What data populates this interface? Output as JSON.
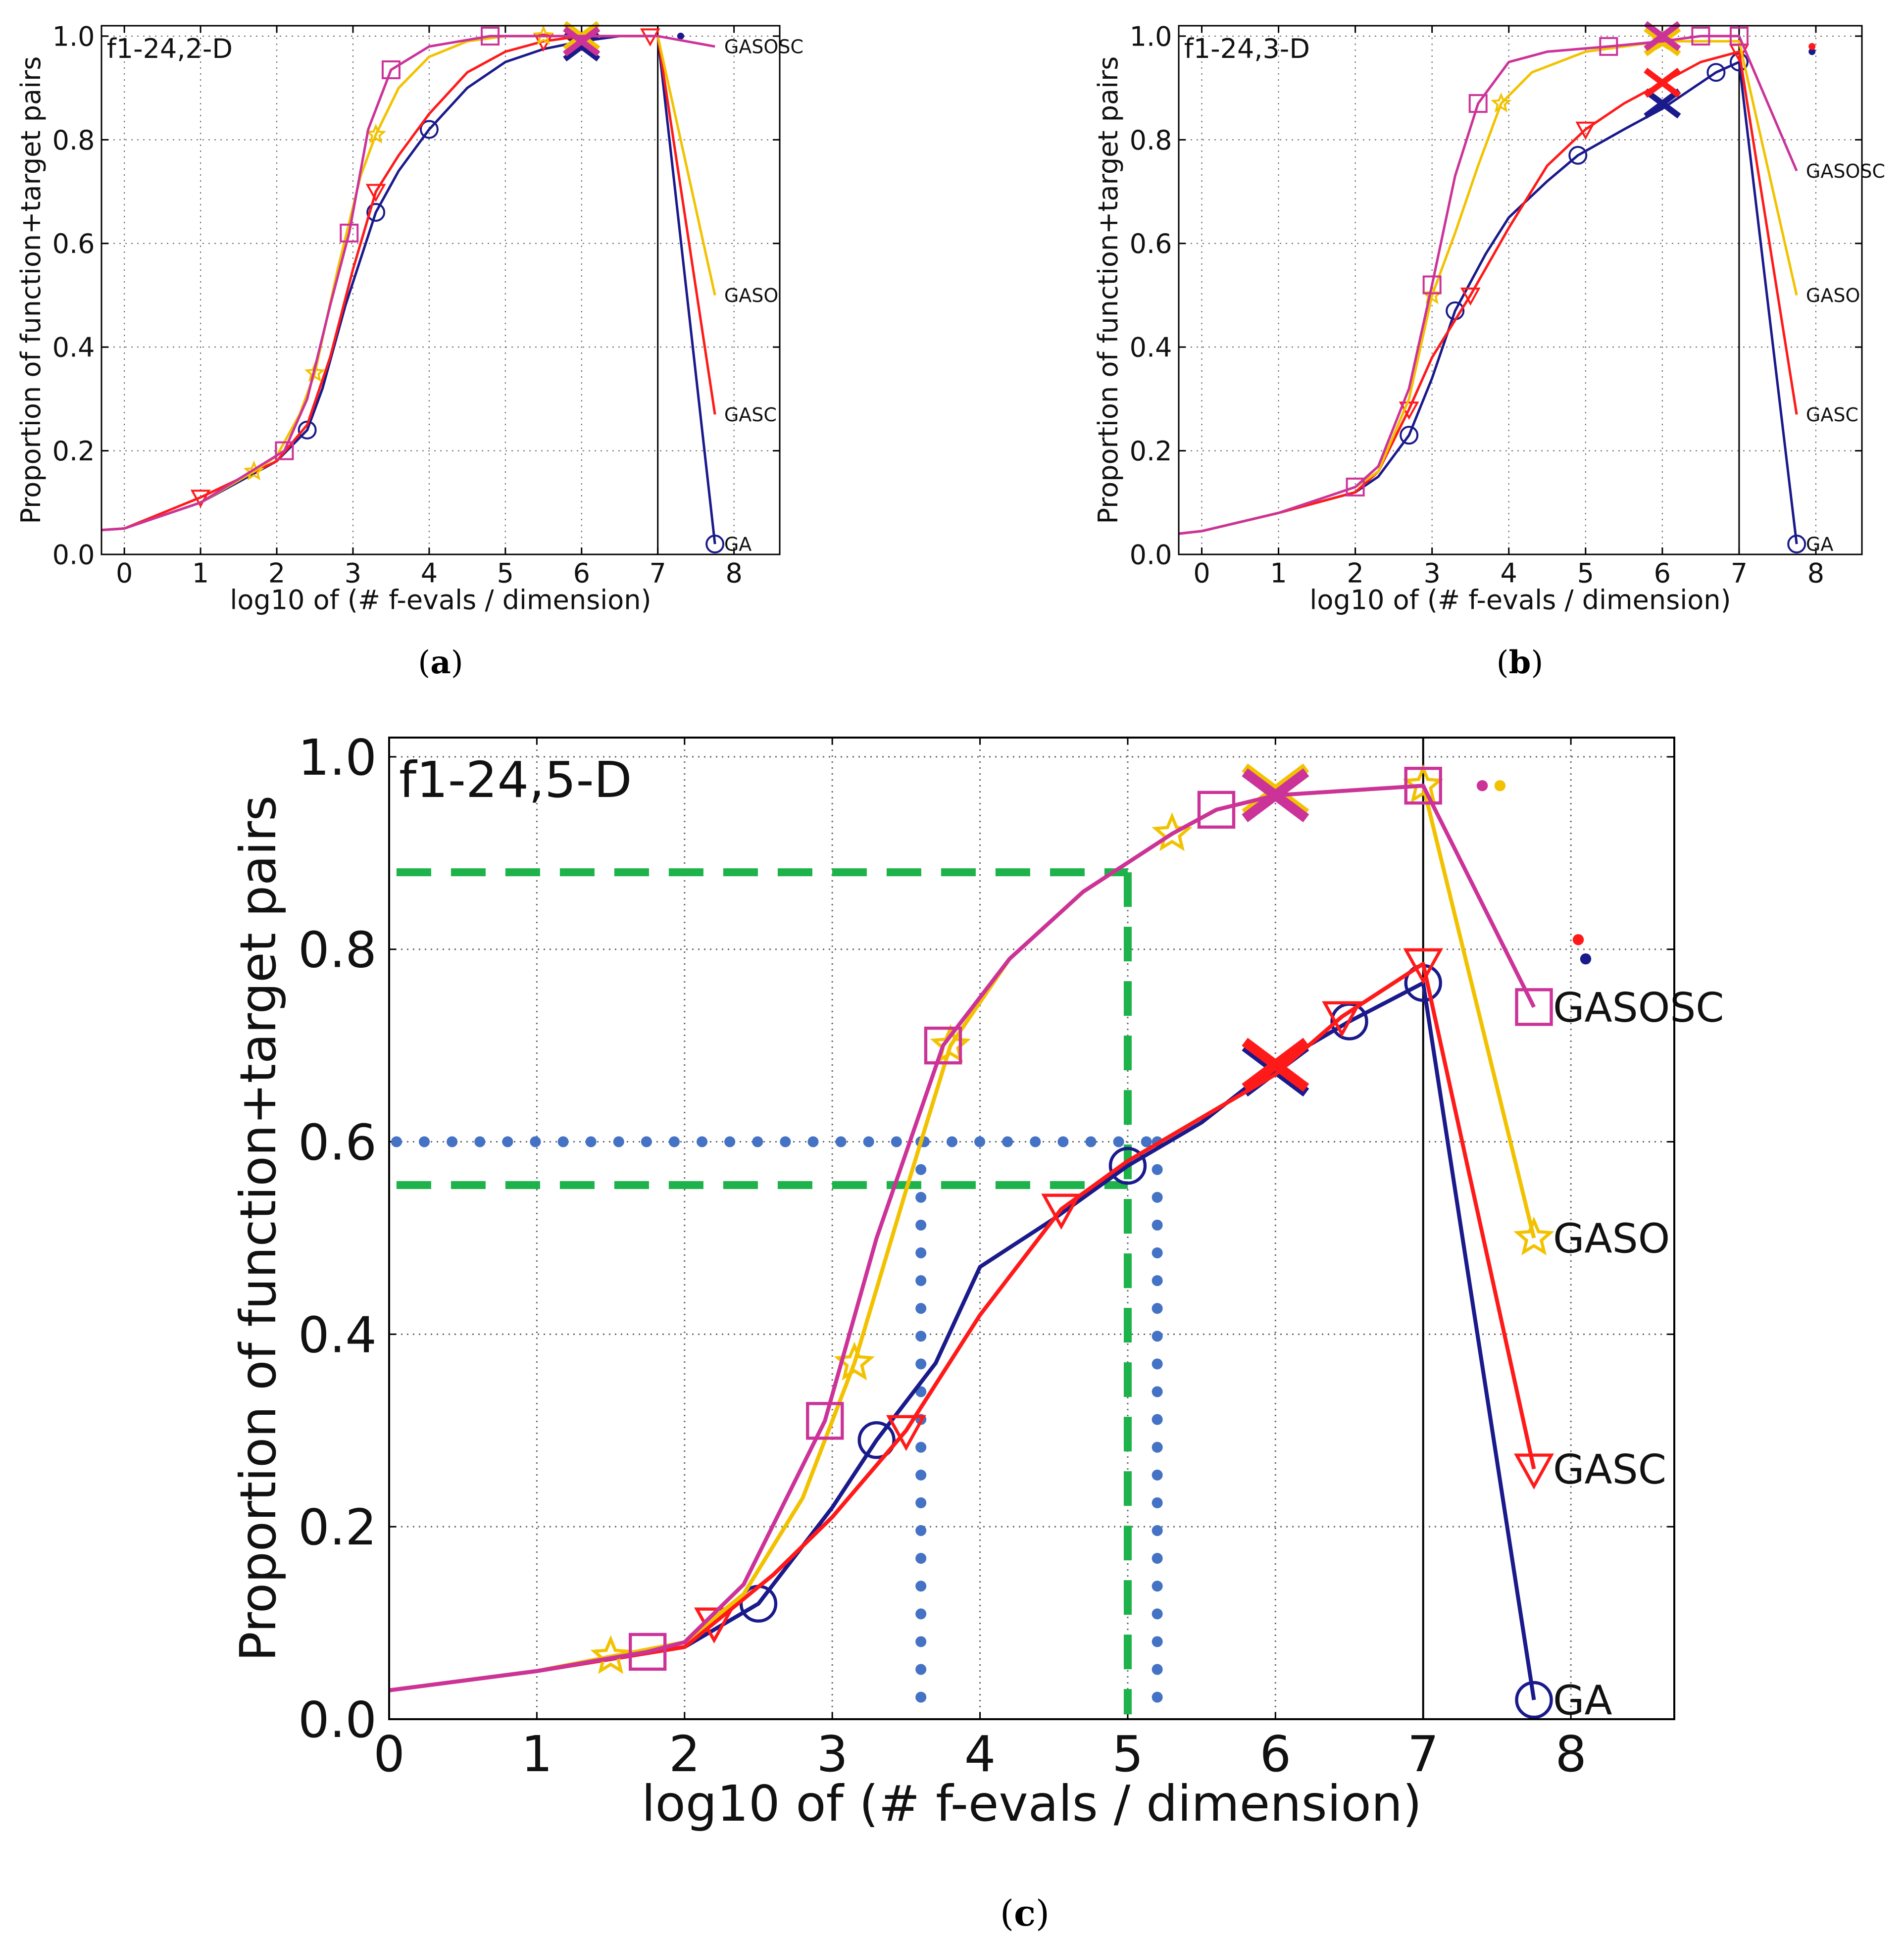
{
  "colors": {
    "GA": "#1a1a8c",
    "GASC": "#ff1a1a",
    "GASO": "#f2c200",
    "GASOSC": "#cc3399",
    "guide_green": "#1db34a",
    "guide_blue": "#4472c4",
    "grid": "#666666"
  },
  "chart_data": [
    {
      "id": "a",
      "type": "line",
      "caption_letter": "a",
      "title": "f1-24,2-D",
      "xlabel": "log10 of (# f-evals / dimension)",
      "ylabel": "Proportion of function+target pairs",
      "xlim": [
        -0.3,
        8.6
      ],
      "ylim": [
        0,
        1.02
      ],
      "xticks": [
        "0",
        "1",
        "2",
        "3",
        "4",
        "5",
        "6",
        "7",
        "8"
      ],
      "yticks": [
        "0.0",
        "0.2",
        "0.4",
        "0.6",
        "0.8",
        "1.0"
      ],
      "vline_x": 7,
      "series": [
        {
          "name": "GA",
          "label": "GA",
          "marker": "circle",
          "x": [
            -0.3,
            0,
            1,
            2,
            2.4,
            2.6,
            2.9,
            3.3,
            3.6,
            4,
            4.5,
            5,
            5.5,
            6,
            6.5,
            7,
            7.75
          ],
          "y": [
            0.047,
            0.05,
            0.1,
            0.18,
            0.24,
            0.32,
            0.48,
            0.66,
            0.74,
            0.82,
            0.9,
            0.95,
            0.975,
            0.99,
            1,
            1,
            0.02
          ],
          "marker_idx": [
            4,
            7,
            9,
            16
          ],
          "end_x": 7.75,
          "end_y": 0.02,
          "cross": [
            6,
            0.98
          ],
          "dot": [
            7.3,
            1.0
          ]
        },
        {
          "name": "GASC",
          "label": "GASC",
          "marker": "tri",
          "x": [
            -0.3,
            0,
            1,
            2,
            2.4,
            2.7,
            3,
            3.3,
            3.6,
            4,
            4.5,
            5,
            5.5,
            6,
            6.5,
            6.9,
            7,
            7.75
          ],
          "y": [
            0.047,
            0.05,
            0.11,
            0.18,
            0.25,
            0.38,
            0.55,
            0.7,
            0.77,
            0.85,
            0.93,
            0.97,
            0.99,
            1,
            1,
            1,
            1,
            0.27
          ],
          "marker_idx": [
            2,
            7,
            12,
            15
          ],
          "end_x": 7.75,
          "end_y": 0.27,
          "cross": [
            6,
            0.99
          ],
          "dot": []
        },
        {
          "name": "GASO",
          "label": "GASO",
          "marker": "star",
          "x": [
            -0.3,
            0,
            1,
            1.7,
            2,
            2.3,
            2.5,
            2.8,
            3.1,
            3.3,
            3.6,
            4,
            4.5,
            5,
            5.5,
            6,
            7,
            7.75
          ],
          "y": [
            0.047,
            0.05,
            0.1,
            0.16,
            0.19,
            0.27,
            0.35,
            0.55,
            0.73,
            0.81,
            0.9,
            0.96,
            0.99,
            1,
            1,
            1,
            1,
            0.5
          ],
          "marker_idx": [
            3,
            6,
            9,
            14
          ],
          "end_x": 7.75,
          "end_y": 0.5,
          "cross": [
            6,
            1.0
          ],
          "dot": []
        },
        {
          "name": "GASOSC",
          "label": "GASOSC",
          "marker": "square",
          "x": [
            -0.3,
            0,
            1,
            2.1,
            2.4,
            2.7,
            2.95,
            3.2,
            3.5,
            4,
            4.8,
            5.5,
            6,
            7,
            7.75
          ],
          "y": [
            0.047,
            0.05,
            0.1,
            0.2,
            0.3,
            0.48,
            0.62,
            0.82,
            0.935,
            0.98,
            1,
            1,
            1,
            1,
            0.98
          ],
          "marker_idx": [
            3,
            6,
            8,
            10
          ],
          "end_x": 7.75,
          "end_y": 0.98,
          "cross": [
            6,
            0.99
          ],
          "dot": []
        }
      ]
    },
    {
      "id": "b",
      "type": "line",
      "caption_letter": "b",
      "title": "f1-24,3-D",
      "xlabel": "log10 of (# f-evals / dimension)",
      "ylabel": "Proportion of function+target pairs",
      "xlim": [
        -0.3,
        8.6
      ],
      "ylim": [
        0,
        1.02
      ],
      "xticks": [
        "0",
        "1",
        "2",
        "3",
        "4",
        "5",
        "6",
        "7",
        "8"
      ],
      "yticks": [
        "0.0",
        "0.2",
        "0.4",
        "0.6",
        "0.8",
        "1.0"
      ],
      "vline_x": 7,
      "series": [
        {
          "name": "GA",
          "label": "GA",
          "marker": "circle",
          "x": [
            -0.3,
            0,
            1,
            2,
            2.3,
            2.7,
            3,
            3.3,
            3.7,
            4,
            4.5,
            4.9,
            5.5,
            6,
            6.4,
            6.7,
            7,
            7.75
          ],
          "y": [
            0.04,
            0.045,
            0.08,
            0.12,
            0.15,
            0.23,
            0.34,
            0.47,
            0.58,
            0.65,
            0.72,
            0.77,
            0.82,
            0.86,
            0.9,
            0.93,
            0.95,
            0.02
          ],
          "marker_idx": [
            5,
            7,
            11,
            15,
            16,
            17
          ],
          "end_x": 7.75,
          "end_y": 0.02,
          "cross": [
            6,
            0.87
          ],
          "dot": [
            7.95,
            0.97
          ]
        },
        {
          "name": "GASC",
          "label": "GASC",
          "marker": "tri",
          "x": [
            -0.3,
            0,
            1,
            2,
            2.3,
            2.7,
            3,
            3.5,
            4,
            4.5,
            5,
            5.5,
            6,
            6.5,
            7,
            7.75
          ],
          "y": [
            0.04,
            0.045,
            0.08,
            0.12,
            0.16,
            0.28,
            0.38,
            0.5,
            0.63,
            0.75,
            0.82,
            0.87,
            0.91,
            0.95,
            0.97,
            0.27
          ],
          "marker_idx": [
            5,
            7,
            10,
            14
          ],
          "end_x": 7.75,
          "end_y": 0.27,
          "cross": [
            6,
            0.91
          ],
          "dot": [
            7.95,
            0.98
          ]
        },
        {
          "name": "GASO",
          "label": "GASO",
          "marker": "star",
          "x": [
            -0.3,
            0,
            1,
            2,
            2.3,
            2.7,
            3,
            3.3,
            3.6,
            3.9,
            4.3,
            5,
            5.5,
            6,
            7,
            7.75
          ],
          "y": [
            0.04,
            0.045,
            0.08,
            0.13,
            0.16,
            0.3,
            0.5,
            0.62,
            0.75,
            0.87,
            0.93,
            0.97,
            0.98,
            0.99,
            0.99,
            0.5
          ],
          "marker_idx": [
            6,
            9,
            13
          ],
          "end_x": 7.75,
          "end_y": 0.5,
          "cross": [
            6,
            0.99
          ],
          "dot": []
        },
        {
          "name": "GASOSC",
          "label": "GASOSC",
          "marker": "square",
          "x": [
            -0.3,
            0,
            1,
            2,
            2.3,
            2.7,
            3,
            3.3,
            3.6,
            4,
            4.5,
            5.3,
            6,
            6.5,
            7,
            7.75
          ],
          "y": [
            0.04,
            0.045,
            0.08,
            0.13,
            0.17,
            0.32,
            0.52,
            0.73,
            0.87,
            0.95,
            0.97,
            0.98,
            0.99,
            1,
            1,
            0.74
          ],
          "marker_idx": [
            3,
            6,
            8,
            11,
            13,
            14
          ],
          "end_x": 7.75,
          "end_y": 0.74,
          "cross": [
            6,
            1.0
          ],
          "dot": []
        }
      ]
    },
    {
      "id": "c",
      "type": "line",
      "caption_letter": "c",
      "title": "f1-24,5-D",
      "xlabel": "log10 of (# f-evals / dimension)",
      "ylabel": "Proportion of function+target pairs",
      "xlim": [
        0,
        8.7
      ],
      "ylim": [
        0,
        1.02
      ],
      "xticks": [
        "0",
        "1",
        "2",
        "3",
        "4",
        "5",
        "6",
        "7",
        "8"
      ],
      "yticks": [
        "0.0",
        "0.2",
        "0.4",
        "0.6",
        "0.8",
        "1.0"
      ],
      "vline_x": 7,
      "guides": {
        "green_h": [
          0.88,
          0.555
        ],
        "green_v": 5.0,
        "blue_h": 0.6,
        "blue_v": [
          3.6,
          5.2
        ]
      },
      "series": [
        {
          "name": "GA",
          "label": "GA",
          "marker": "circle",
          "x": [
            0,
            1,
            2,
            2.5,
            3,
            3.3,
            3.7,
            4,
            4.5,
            5,
            5.5,
            6,
            6.5,
            7,
            7.75
          ],
          "y": [
            0.03,
            0.05,
            0.075,
            0.12,
            0.22,
            0.29,
            0.37,
            0.47,
            0.52,
            0.575,
            0.62,
            0.68,
            0.725,
            0.765,
            0.02
          ],
          "marker_idx": [
            3,
            5,
            9,
            12,
            13,
            14
          ],
          "end_x": 7.75,
          "end_y": 0.02,
          "cross": [
            6,
            0.675
          ],
          "dot": [
            8.1,
            0.79
          ]
        },
        {
          "name": "GASC",
          "label": "GASC",
          "marker": "tri",
          "x": [
            0,
            1,
            2,
            2.2,
            2.6,
            3,
            3.5,
            4,
            4.55,
            5,
            5.5,
            6,
            6.45,
            7,
            7.75
          ],
          "y": [
            0.03,
            0.05,
            0.075,
            0.1,
            0.15,
            0.21,
            0.3,
            0.42,
            0.53,
            0.58,
            0.625,
            0.67,
            0.73,
            0.785,
            0.26
          ],
          "marker_idx": [
            3,
            6,
            8,
            12,
            13,
            14
          ],
          "end_x": 7.75,
          "end_y": 0.26,
          "cross": [
            6,
            0.68
          ],
          "dot": [
            8.05,
            0.81
          ]
        },
        {
          "name": "GASO",
          "label": "GASO",
          "marker": "star",
          "x": [
            0,
            1,
            1.5,
            2,
            2.4,
            2.8,
            3.15,
            3.5,
            3.8,
            4.2,
            4.7,
            5.3,
            5.6,
            6,
            7,
            7.75
          ],
          "y": [
            0.03,
            0.05,
            0.065,
            0.08,
            0.13,
            0.23,
            0.37,
            0.55,
            0.7,
            0.79,
            0.86,
            0.92,
            0.945,
            0.96,
            0.97,
            0.5
          ],
          "marker_idx": [
            2,
            6,
            8,
            11,
            14,
            15
          ],
          "end_x": 7.75,
          "end_y": 0.5,
          "cross": [
            6,
            0.965
          ],
          "dot": [
            7.52,
            0.97
          ]
        },
        {
          "name": "GASOSC",
          "label": "GASOSC",
          "marker": "square",
          "x": [
            0,
            1,
            1.75,
            2,
            2.4,
            2.95,
            3.3,
            3.75,
            4.2,
            4.7,
            5.3,
            5.6,
            6,
            7,
            7.75
          ],
          "y": [
            0.03,
            0.05,
            0.07,
            0.08,
            0.14,
            0.31,
            0.5,
            0.7,
            0.79,
            0.86,
            0.92,
            0.945,
            0.96,
            0.97,
            0.74
          ],
          "marker_idx": [
            2,
            5,
            7,
            11,
            13,
            14
          ],
          "end_x": 7.75,
          "end_y": 0.74,
          "cross": [
            6,
            0.96
          ],
          "dot": [
            7.4,
            0.97
          ]
        }
      ]
    }
  ]
}
